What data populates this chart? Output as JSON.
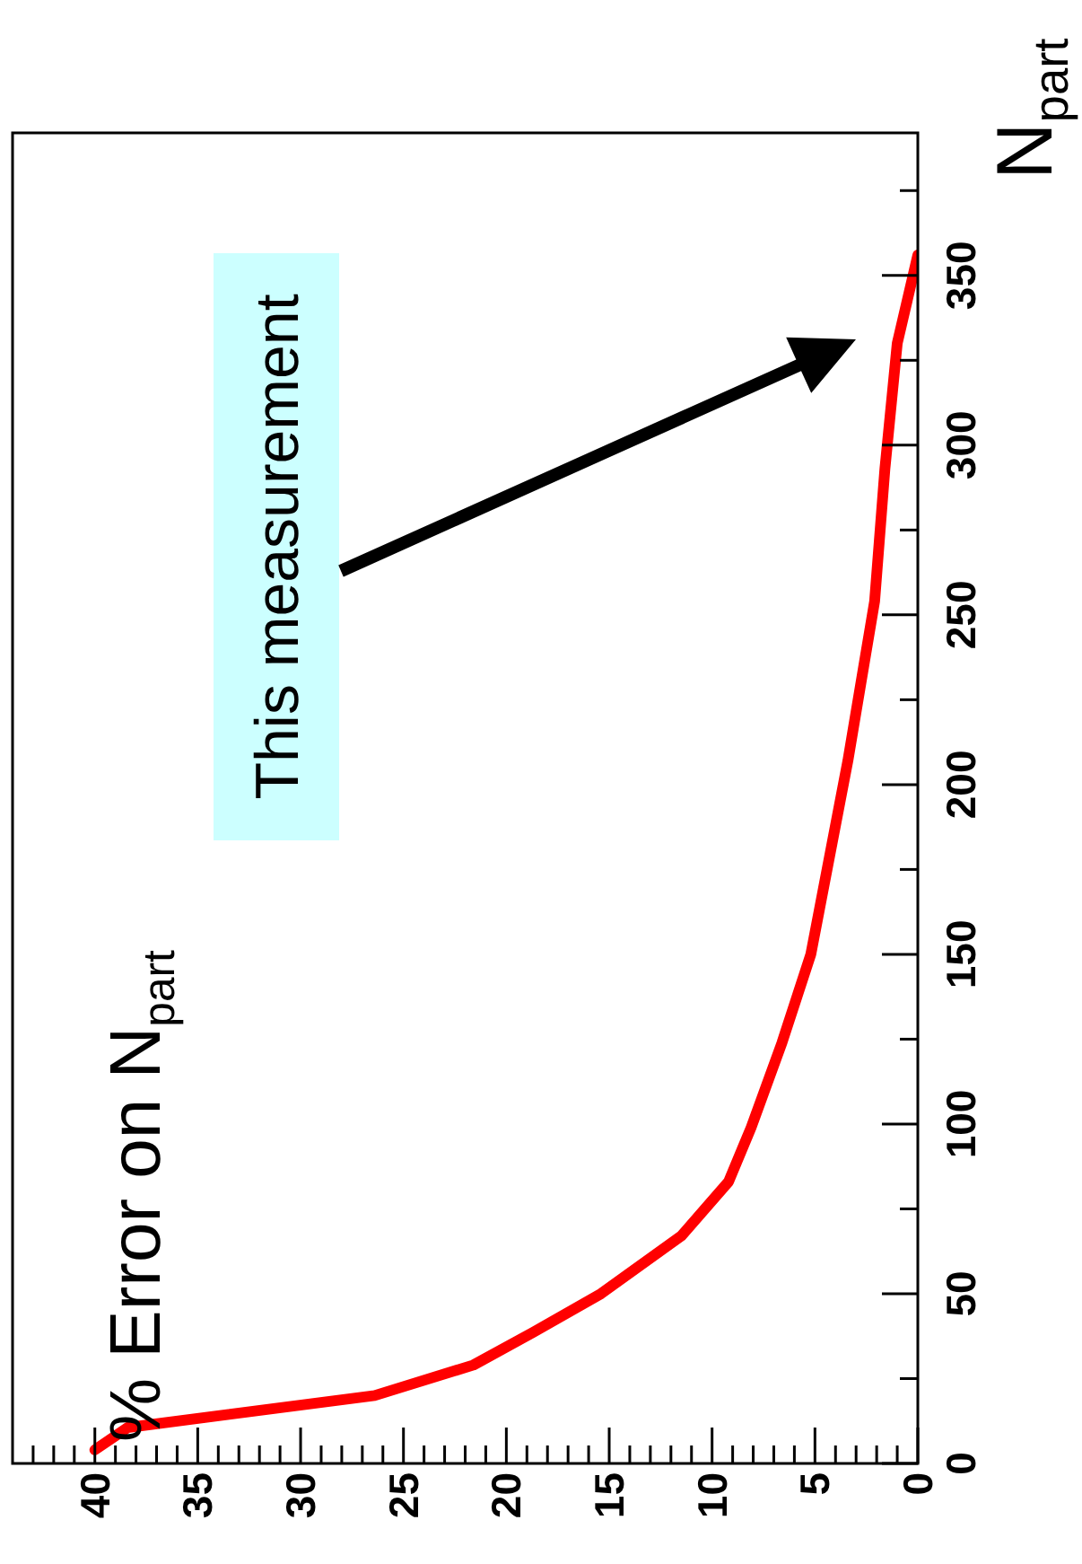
{
  "chart_data": {
    "type": "line",
    "ylabel": "N$_{part}$",
    "x": [
      40,
      38.4,
      26.4,
      21.6,
      18.7,
      15.4,
      11.5,
      9.2,
      8.1,
      6.6,
      5.2,
      3.4,
      2.1,
      1.6,
      1.0,
      0
    ],
    "series": [
      {
        "color": "#ff0000",
        "values": [
          4,
          10.6,
          20,
          29,
          38.6,
          50,
          67,
          83,
          99,
          124,
          150,
          207,
          254,
          293,
          330,
          356
        ]
      }
    ],
    "xlim": [
      44,
      0
    ],
    "ylim": [
      0,
      392
    ],
    "yticks": [
      0,
      {
        "value": 25,
        "label": null
      },
      50,
      {
        "value": 75,
        "label": null
      },
      100,
      {
        "value": 125,
        "label": null
      },
      150,
      {
        "value": 175,
        "label": null
      },
      200,
      {
        "value": 225,
        "label": null
      },
      250,
      {
        "value": 275,
        "label": null
      },
      300,
      {
        "value": 325,
        "label": null
      },
      350,
      {
        "value": 375,
        "label": null
      }
    ],
    "xticks": [
      0,
      {
        "value": 1,
        "label": null
      },
      {
        "value": 2,
        "label": null
      },
      {
        "value": 3,
        "label": null
      },
      {
        "value": 4,
        "label": null
      },
      5,
      {
        "value": 6,
        "label": null
      },
      {
        "value": 7,
        "label": null
      },
      {
        "value": 8,
        "label": null
      },
      {
        "value": 9,
        "label": null
      },
      10,
      {
        "value": 11,
        "label": null
      },
      {
        "value": 12,
        "label": null
      },
      {
        "value": 13,
        "label": null
      },
      {
        "value": 14,
        "label": null
      },
      15,
      {
        "value": 16,
        "label": null
      },
      {
        "value": 17,
        "label": null
      },
      {
        "value": 18,
        "label": null
      },
      {
        "value": 19,
        "label": null
      },
      20,
      {
        "value": 21,
        "label": null
      },
      {
        "value": 22,
        "label": null
      },
      {
        "value": 23,
        "label": null
      },
      {
        "value": 24,
        "label": null
      },
      25,
      {
        "value": 26,
        "label": null
      },
      {
        "value": 27,
        "label": null
      },
      {
        "value": 28,
        "label": null
      },
      {
        "value": 29,
        "label": null
      },
      30,
      {
        "value": 31,
        "label": null
      },
      {
        "value": 32,
        "label": null
      },
      {
        "value": 33,
        "label": null
      },
      {
        "value": 34,
        "label": null
      },
      35,
      {
        "value": 36,
        "label": null
      },
      {
        "value": 37,
        "label": null
      },
      {
        "value": 38,
        "label": null
      },
      {
        "value": 39,
        "label": null
      },
      40,
      {
        "value": 41,
        "label": null
      },
      {
        "value": 42,
        "label": null
      },
      {
        "value": 43,
        "label": null
      }
    ],
    "annotations": [
      "% Error on N$_{part}$",
      "This measurement"
    ],
    "grid": false,
    "legend": false,
    "marker": "none",
    "line_style": "solid"
  }
}
